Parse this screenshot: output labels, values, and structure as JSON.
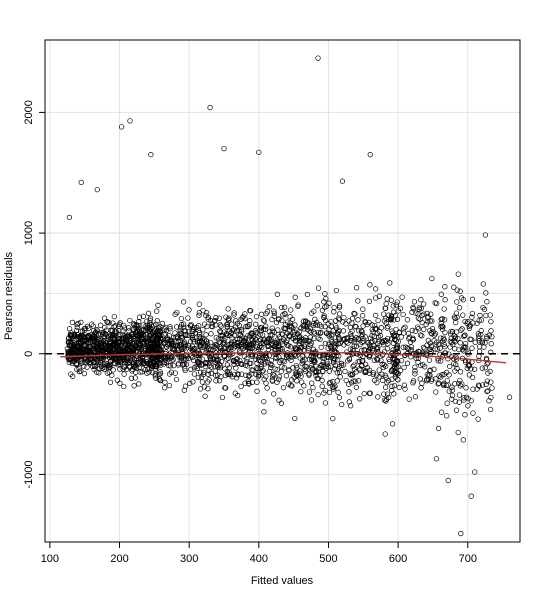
{
  "chart_data": {
    "type": "scatter",
    "title": "",
    "xlabel": "Fitted values",
    "ylabel": "Pearson residuals",
    "xlim": [
      93,
      775
    ],
    "ylim": [
      -1560,
      2600
    ],
    "x_ticks": [
      100,
      200,
      300,
      400,
      500,
      600,
      700
    ],
    "y_ticks": [
      -1000,
      0,
      1000,
      2000
    ],
    "grid": true,
    "legend": "none",
    "reference_line": {
      "y": 0,
      "style": "dashed",
      "color": "#000000"
    },
    "colors": {
      "points": "#000000",
      "smooth": "#c0392b",
      "grid": "#e3e3e3"
    },
    "outliers": [
      {
        "x": 485,
        "y": 2450
      },
      {
        "x": 330,
        "y": 2040
      },
      {
        "x": 215,
        "y": 1930
      },
      {
        "x": 203,
        "y": 1880
      },
      {
        "x": 400,
        "y": 1670
      },
      {
        "x": 560,
        "y": 1650
      },
      {
        "x": 245,
        "y": 1650
      },
      {
        "x": 350,
        "y": 1700
      },
      {
        "x": 145,
        "y": 1420
      },
      {
        "x": 168,
        "y": 1360
      },
      {
        "x": 520,
        "y": 1430
      },
      {
        "x": 128,
        "y": 1130
      },
      {
        "x": 690,
        "y": -1490
      },
      {
        "x": 705,
        "y": -1180
      },
      {
        "x": 672,
        "y": -1050
      },
      {
        "x": 710,
        "y": -980
      },
      {
        "x": 760,
        "y": -360
      },
      {
        "x": 655,
        "y": -870
      }
    ],
    "series": [
      {
        "type": "smooth",
        "x": [
          115,
          150,
          200,
          250,
          300,
          350,
          400,
          450,
          500,
          550,
          600,
          650,
          700,
          755
        ],
        "y": [
          -25,
          -18,
          -8,
          -2,
          2,
          5,
          8,
          10,
          10,
          5,
          -5,
          -22,
          -45,
          -75
        ]
      }
    ]
  }
}
